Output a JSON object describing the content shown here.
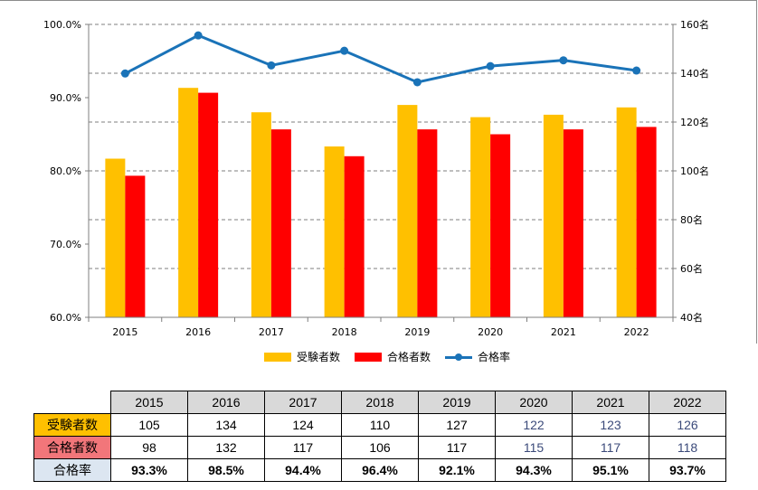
{
  "chart_data": {
    "type": "bar+line",
    "categories": [
      "2015",
      "2016",
      "2017",
      "2018",
      "2019",
      "2020",
      "2021",
      "2022"
    ],
    "series": [
      {
        "name": "受験者数",
        "type": "bar",
        "axis": "right",
        "color": "#ffc000",
        "values": [
          105,
          134,
          124,
          110,
          127,
          122,
          123,
          126
        ]
      },
      {
        "name": "合格者数",
        "type": "bar",
        "axis": "right",
        "color": "#ff0000",
        "values": [
          98,
          132,
          117,
          106,
          117,
          115,
          117,
          118
        ]
      },
      {
        "name": "合格率",
        "type": "line",
        "axis": "left",
        "color": "#1a73b8",
        "values": [
          93.3,
          98.5,
          94.4,
          96.4,
          92.1,
          94.3,
          95.1,
          93.7
        ]
      }
    ],
    "left_axis": {
      "ticks": [
        "60.0%",
        "70.0%",
        "80.0%",
        "90.0%",
        "100.0%"
      ],
      "range": [
        60,
        100
      ]
    },
    "right_axis": {
      "ticks": [
        "40名",
        "60名",
        "80名",
        "100名",
        "120名",
        "140名",
        "160名"
      ],
      "range": [
        40,
        160
      ]
    },
    "grid": "dashed-horizontal",
    "legend": {
      "position": "bottom",
      "labels": [
        "受験者数",
        "合格者数",
        "合格率"
      ]
    }
  },
  "table": {
    "years": [
      "2015",
      "2016",
      "2017",
      "2018",
      "2019",
      "2020",
      "2021",
      "2022"
    ],
    "rows": [
      {
        "label": "受験者数",
        "bg": "#ffc000",
        "values": [
          "105",
          "134",
          "124",
          "110",
          "127",
          "122",
          "123",
          "126"
        ]
      },
      {
        "label": "合格者数",
        "bg": "#f2767a",
        "values": [
          "98",
          "132",
          "117",
          "106",
          "117",
          "115",
          "117",
          "118"
        ]
      },
      {
        "label": "合格率",
        "bg": "#dce6f1",
        "values": [
          "93.3%",
          "98.5%",
          "94.4%",
          "96.4%",
          "92.1%",
          "94.3%",
          "95.1%",
          "93.7%"
        ]
      }
    ]
  }
}
